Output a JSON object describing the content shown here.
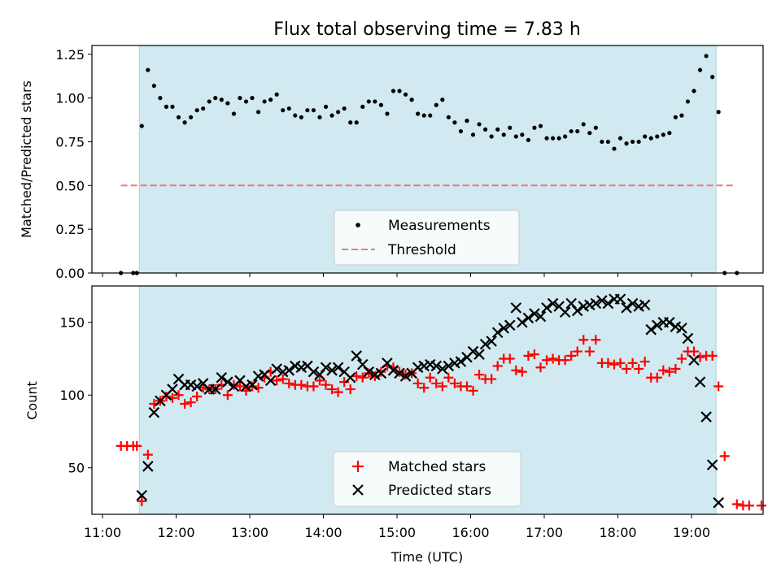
{
  "figure": {
    "title": "Flux total observing time = 7.83 h",
    "xlabel": "Time (UTC)"
  },
  "chart_data": [
    {
      "type": "scatter",
      "panel": "top",
      "ylabel": "Matched/Predicted stars",
      "xlim": [
        "11:00",
        "20:00"
      ],
      "ylim": [
        0,
        1.3
      ],
      "yticks": [
        "0.00",
        "0.25",
        "0.50",
        "0.75",
        "1.00",
        "1.25"
      ],
      "shaded_interval": [
        "11:30",
        "19:20"
      ],
      "shade_color": "#d1e9f0",
      "legend_position": "bottom-center",
      "series": [
        {
          "name": "Measurements",
          "marker": "dot",
          "color": "#000000",
          "x": [
            "11:15",
            "11:25",
            "11:28",
            "11:32",
            "11:37",
            "11:42",
            "11:47",
            "11:52",
            "11:57",
            "12:02",
            "12:07",
            "12:12",
            "12:17",
            "12:22",
            "12:27",
            "12:32",
            "12:37",
            "12:42",
            "12:47",
            "12:52",
            "12:57",
            "13:02",
            "13:07",
            "13:12",
            "13:17",
            "13:22",
            "13:27",
            "13:32",
            "13:37",
            "13:42",
            "13:47",
            "13:52",
            "13:57",
            "14:02",
            "14:07",
            "14:12",
            "14:17",
            "14:22",
            "14:27",
            "14:32",
            "14:37",
            "14:42",
            "14:47",
            "14:52",
            "14:57",
            "15:02",
            "15:07",
            "15:12",
            "15:17",
            "15:22",
            "15:27",
            "15:32",
            "15:37",
            "15:42",
            "15:47",
            "15:52",
            "15:57",
            "16:02",
            "16:07",
            "16:12",
            "16:17",
            "16:22",
            "16:27",
            "16:32",
            "16:37",
            "16:42",
            "16:47",
            "16:52",
            "16:57",
            "17:02",
            "17:07",
            "17:12",
            "17:17",
            "17:22",
            "17:27",
            "17:32",
            "17:37",
            "17:42",
            "17:47",
            "17:52",
            "17:57",
            "18:02",
            "18:07",
            "18:12",
            "18:17",
            "18:22",
            "18:27",
            "18:32",
            "18:37",
            "18:42",
            "18:47",
            "18:52",
            "18:57",
            "19:02",
            "19:07",
            "19:12",
            "19:17",
            "19:22",
            "19:27",
            "19:37"
          ],
          "y": [
            0,
            0,
            0,
            0.84,
            1.16,
            1.07,
            1.0,
            0.95,
            0.95,
            0.89,
            0.86,
            0.89,
            0.93,
            0.94,
            0.98,
            1.0,
            0.99,
            0.97,
            0.91,
            1.0,
            0.98,
            1.0,
            0.92,
            0.98,
            0.99,
            1.02,
            0.93,
            0.94,
            0.9,
            0.89,
            0.93,
            0.93,
            0.89,
            0.95,
            0.9,
            0.92,
            0.94,
            0.86,
            0.86,
            0.95,
            0.98,
            0.98,
            0.96,
            0.91,
            1.04,
            1.04,
            1.02,
            0.99,
            0.91,
            0.9,
            0.9,
            0.96,
            0.99,
            0.89,
            0.86,
            0.81,
            0.87,
            0.79,
            0.85,
            0.82,
            0.78,
            0.82,
            0.79,
            0.83,
            0.78,
            0.79,
            0.76,
            0.83,
            0.84,
            0.77,
            0.77,
            0.77,
            0.78,
            0.81,
            0.81,
            0.85,
            0.8,
            0.83,
            0.75,
            0.75,
            0.71,
            0.77,
            0.74,
            0.75,
            0.75,
            0.78,
            0.77,
            0.78,
            0.79,
            0.8,
            0.89,
            0.9,
            0.98,
            1.04,
            1.16,
            1.24,
            1.12,
            0.92,
            0,
            0
          ]
        },
        {
          "name": "Threshold",
          "marker": "dashed-line",
          "color": "#f27676",
          "x": [
            "11:15",
            "19:35"
          ],
          "y": [
            0.5,
            0.5
          ]
        }
      ]
    },
    {
      "type": "scatter",
      "panel": "bottom",
      "ylabel": "Count",
      "xlabel": "Time (UTC)",
      "xlim": [
        "11:00",
        "20:00"
      ],
      "ylim": [
        18,
        175
      ],
      "xticks": [
        "11:00",
        "12:00",
        "13:00",
        "14:00",
        "15:00",
        "16:00",
        "17:00",
        "18:00",
        "19:00"
      ],
      "yticks": [
        "50",
        "100",
        "150"
      ],
      "shaded_interval": [
        "11:30",
        "19:20"
      ],
      "shade_color": "#d1e9f0",
      "legend_position": "bottom-center",
      "series": [
        {
          "name": "Matched stars",
          "marker": "plus",
          "color": "#ff0000",
          "x": [
            "11:15",
            "11:20",
            "11:25",
            "11:28",
            "11:32",
            "11:37",
            "11:42",
            "11:47",
            "11:52",
            "11:57",
            "12:02",
            "12:07",
            "12:12",
            "12:17",
            "12:22",
            "12:27",
            "12:32",
            "12:37",
            "12:42",
            "12:47",
            "12:52",
            "12:57",
            "13:02",
            "13:07",
            "13:12",
            "13:17",
            "13:22",
            "13:27",
            "13:32",
            "13:37",
            "13:42",
            "13:47",
            "13:52",
            "13:57",
            "14:02",
            "14:07",
            "14:12",
            "14:17",
            "14:22",
            "14:27",
            "14:32",
            "14:37",
            "14:42",
            "14:47",
            "14:52",
            "14:57",
            "15:02",
            "15:07",
            "15:12",
            "15:17",
            "15:22",
            "15:27",
            "15:32",
            "15:37",
            "15:42",
            "15:47",
            "15:52",
            "15:57",
            "16:02",
            "16:07",
            "16:12",
            "16:17",
            "16:22",
            "16:27",
            "16:32",
            "16:37",
            "16:42",
            "16:47",
            "16:52",
            "16:57",
            "17:02",
            "17:07",
            "17:12",
            "17:17",
            "17:22",
            "17:27",
            "17:32",
            "17:37",
            "17:42",
            "17:47",
            "17:52",
            "17:57",
            "18:02",
            "18:07",
            "18:12",
            "18:17",
            "18:22",
            "18:27",
            "18:32",
            "18:37",
            "18:42",
            "18:47",
            "18:52",
            "18:57",
            "19:02",
            "19:07",
            "19:12",
            "19:17",
            "19:22",
            "19:27",
            "19:37",
            "19:42",
            "19:47",
            "19:57"
          ],
          "y": [
            65,
            65,
            65,
            65,
            27,
            59,
            94,
            96,
            99,
            98,
            100,
            94,
            95,
            99,
            105,
            104,
            104,
            107,
            100,
            107,
            106,
            103,
            106,
            105,
            112,
            116,
            110,
            111,
            108,
            107,
            107,
            106,
            106,
            110,
            107,
            104,
            102,
            109,
            104,
            113,
            112,
            115,
            113,
            116,
            120,
            119,
            116,
            114,
            115,
            108,
            105,
            112,
            108,
            106,
            112,
            108,
            106,
            106,
            103,
            114,
            111,
            111,
            120,
            125,
            125,
            117,
            116,
            127,
            128,
            119,
            124,
            125,
            124,
            124,
            127,
            130,
            138,
            130,
            138,
            122,
            122,
            121,
            122,
            118,
            122,
            118,
            123,
            112,
            112,
            117,
            116,
            118,
            125,
            130,
            130,
            126,
            127,
            127,
            106,
            58,
            25,
            24,
            24,
            24
          ]
        },
        {
          "name": "Predicted stars",
          "marker": "x",
          "color": "#000000",
          "x": [
            "11:32",
            "11:37",
            "11:42",
            "11:47",
            "11:52",
            "11:57",
            "12:02",
            "12:07",
            "12:12",
            "12:17",
            "12:22",
            "12:27",
            "12:32",
            "12:37",
            "12:42",
            "12:47",
            "12:52",
            "12:57",
            "13:02",
            "13:07",
            "13:12",
            "13:17",
            "13:22",
            "13:27",
            "13:32",
            "13:37",
            "13:42",
            "13:47",
            "13:52",
            "13:57",
            "14:02",
            "14:07",
            "14:12",
            "14:17",
            "14:22",
            "14:27",
            "14:32",
            "14:37",
            "14:42",
            "14:47",
            "14:52",
            "14:57",
            "15:02",
            "15:07",
            "15:12",
            "15:17",
            "15:22",
            "15:27",
            "15:32",
            "15:37",
            "15:42",
            "15:47",
            "15:52",
            "15:57",
            "16:02",
            "16:07",
            "16:12",
            "16:17",
            "16:22",
            "16:27",
            "16:32",
            "16:37",
            "16:42",
            "16:47",
            "16:52",
            "16:57",
            "17:02",
            "17:07",
            "17:12",
            "17:17",
            "17:22",
            "17:27",
            "17:32",
            "17:37",
            "17:42",
            "17:47",
            "17:52",
            "17:57",
            "18:02",
            "18:07",
            "18:12",
            "18:17",
            "18:22",
            "18:27",
            "18:32",
            "18:37",
            "18:42",
            "18:47",
            "18:52",
            "18:57",
            "19:02",
            "19:07",
            "19:12",
            "19:17",
            "19:22"
          ],
          "y": [
            31,
            51,
            88,
            96,
            100,
            104,
            111,
            107,
            107,
            106,
            108,
            104,
            104,
            112,
            109,
            106,
            110,
            106,
            107,
            113,
            114,
            110,
            118,
            116,
            117,
            120,
            119,
            120,
            116,
            114,
            119,
            117,
            119,
            116,
            112,
            127,
            121,
            116,
            114,
            115,
            122,
            117,
            115,
            113,
            115,
            119,
            120,
            121,
            120,
            118,
            120,
            122,
            123,
            126,
            130,
            128,
            135,
            137,
            143,
            146,
            148,
            160,
            150,
            153,
            156,
            154,
            160,
            163,
            161,
            157,
            163,
            158,
            161,
            162,
            163,
            165,
            163,
            166,
            166,
            160,
            163,
            161,
            162,
            145,
            148,
            150,
            150,
            147,
            146,
            139,
            124,
            109,
            85,
            52,
            26
          ]
        }
      ]
    }
  ]
}
